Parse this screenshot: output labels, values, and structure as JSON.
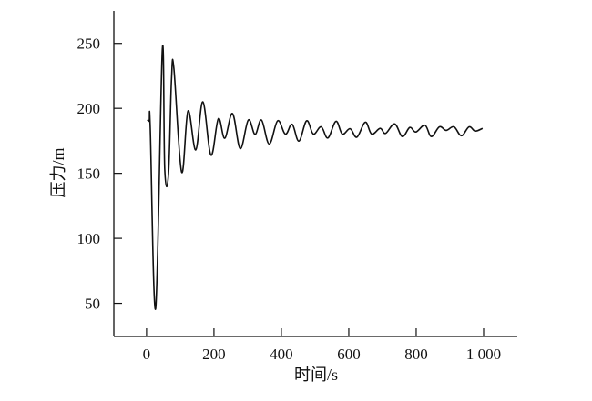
{
  "chart_data": {
    "type": "line",
    "title": "",
    "xlabel": "时间/s",
    "ylabel": "压力/m",
    "xlim": [
      -97,
      1100
    ],
    "ylim": [
      24.5,
      275
    ],
    "xticks": [
      0,
      200,
      400,
      600,
      800,
      1000
    ],
    "xtick_labels": [
      "0",
      "200",
      "400",
      "600",
      "800",
      "1 000"
    ],
    "yticks": [
      50,
      100,
      150,
      200,
      250
    ],
    "ytick_labels": [
      "50",
      "100",
      "150",
      "200",
      "250"
    ],
    "grid": false,
    "line_color": "#111111",
    "series": [
      {
        "x": [
          2,
          8,
          11,
          27,
          47,
          54,
          65,
          74,
          81,
          104,
          123,
          146,
          167,
          191,
          213,
          232,
          255,
          278,
          302,
          322,
          341,
          364,
          389,
          412,
          432,
          452,
          475,
          495,
          518,
          538,
          562,
          581,
          604,
          624,
          649,
          668,
          693,
          709,
          736,
          759,
          781,
          799,
          826,
          845,
          869,
          889,
          912,
          934,
          957,
          975,
          997
        ],
        "y": [
          191,
          190,
          185,
          46,
          246,
          153,
          149,
          222,
          231,
          151,
          198,
          168,
          205,
          164,
          192,
          177,
          196,
          169,
          191,
          180,
          191,
          172.5,
          190.4,
          180.2,
          187.7,
          174.8,
          190.4,
          180.2,
          185.8,
          177.2,
          190,
          180.2,
          184.3,
          177.8,
          189.3,
          180.2,
          184.6,
          180.7,
          188,
          178.3,
          185.3,
          181.8,
          187,
          178.3,
          185.8,
          183,
          185.8,
          178.9,
          185.8,
          182.5,
          184.6
        ]
      }
    ]
  }
}
